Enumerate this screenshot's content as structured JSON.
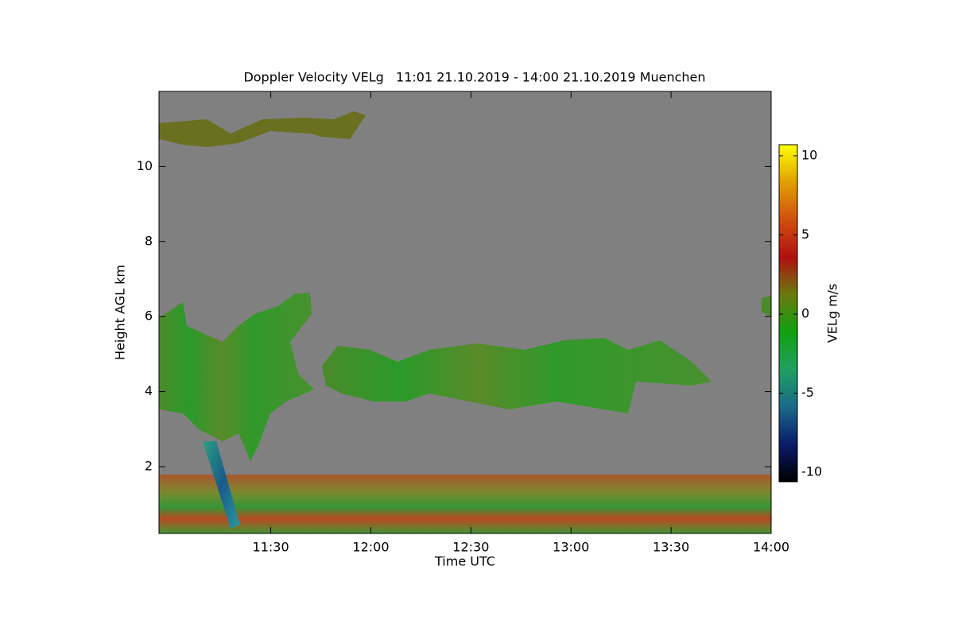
{
  "chart_data": {
    "type": "heatmap",
    "title": "Doppler Velocity VELg   11:01 21.10.2019 - 14:00 21.10.2019 Muenchen",
    "x_label": "Time UTC",
    "y_label": "Height AGL km",
    "colorbar_label": "VELg m/s",
    "xlim": [
      656.5,
      840
    ],
    "xticks": [
      {
        "value": 690,
        "label": "11:30"
      },
      {
        "value": 720,
        "label": "12:00"
      },
      {
        "value": 750,
        "label": "12:30"
      },
      {
        "value": 780,
        "label": "13:00"
      },
      {
        "value": 810,
        "label": "13:30"
      },
      {
        "value": 840,
        "label": "14:00"
      }
    ],
    "ylim": [
      0.22,
      12
    ],
    "yticks": [
      2,
      4,
      6,
      8,
      10
    ],
    "clim": [
      -10.6,
      10.7
    ],
    "cticks": [
      -10,
      -5,
      0,
      5,
      10
    ],
    "colormap": [
      "#000000",
      "#0a1a6a",
      "#1a6a8a",
      "#20a060",
      "#10a010",
      "#6a7a10",
      "#b01010",
      "#d05010",
      "#e0a000",
      "#ffff00"
    ],
    "background_color": "#808080"
  }
}
